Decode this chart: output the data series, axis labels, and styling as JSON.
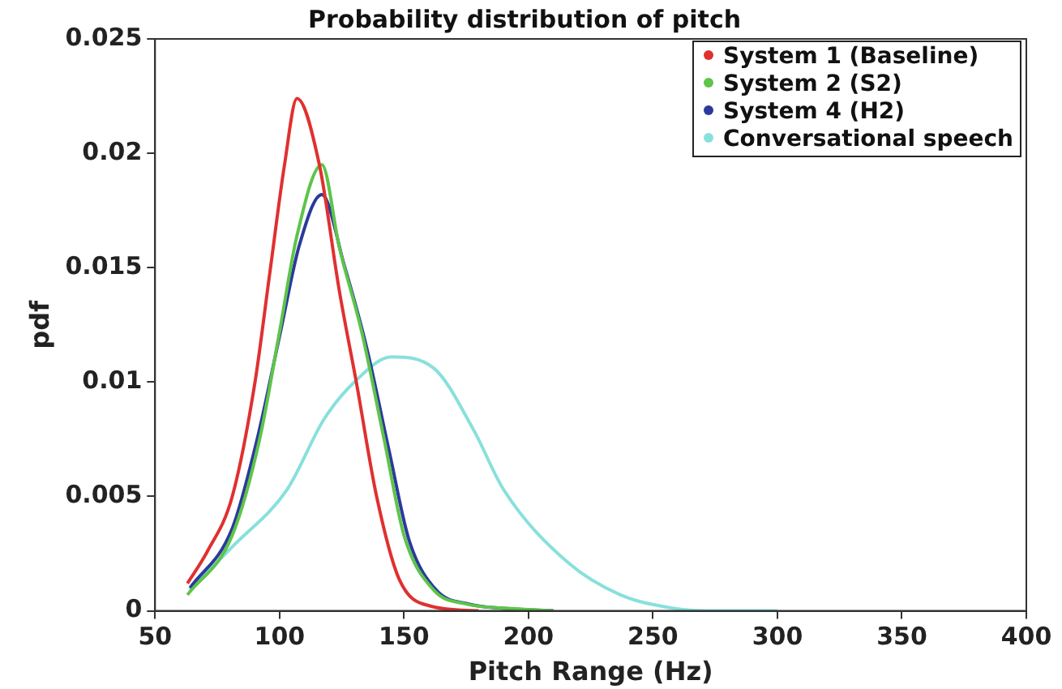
{
  "chart_data": {
    "type": "line",
    "title": "Probability distribution of pitch",
    "xlabel": "Pitch Range (Hz)",
    "ylabel": "pdf",
    "xlim": [
      50,
      400
    ],
    "xticks": [
      50,
      100,
      150,
      200,
      250,
      300,
      350,
      400
    ],
    "ylim": [
      0,
      0.025
    ],
    "yticks": [
      0,
      0.005,
      0.01,
      0.015,
      0.02,
      0.025
    ],
    "grid": false,
    "legend": "top right",
    "marker": "none",
    "line_style": "solid",
    "series": [
      {
        "name": "System 1 (Baseline)",
        "color": "#e03030",
        "x": [
          63,
          71,
          81,
          90,
          96,
          102,
          107,
          116,
          124,
          131,
          139,
          148,
          161,
          180
        ],
        "values": [
          0.0012,
          0.0026,
          0.005,
          0.0099,
          0.0147,
          0.0195,
          0.0224,
          0.0195,
          0.014,
          0.0099,
          0.005,
          0.0014,
          0.0002,
          0
        ]
      },
      {
        "name": "System 2 (S2)",
        "color": "#5ec44a",
        "x": [
          63,
          81,
          92,
          100,
          107,
          117,
          124,
          133,
          142,
          150,
          162,
          175,
          194,
          210
        ],
        "values": [
          0.0007,
          0.0033,
          0.0075,
          0.0122,
          0.0164,
          0.0195,
          0.0159,
          0.0122,
          0.0075,
          0.0033,
          0.0009,
          0.0003,
          0.0001,
          0
        ]
      },
      {
        "name": "System 4 (H2)",
        "color": "#2b3a9c",
        "x": [
          64,
          81,
          91,
          100,
          108,
          117,
          126,
          135,
          144,
          152,
          163,
          176,
          191,
          210
        ],
        "values": [
          0.001,
          0.0036,
          0.0075,
          0.012,
          0.016,
          0.0182,
          0.0151,
          0.0115,
          0.007,
          0.0031,
          0.0009,
          0.0003,
          0.0001,
          0
        ]
      },
      {
        "name": "Conversational speech",
        "color": "#88e0dc",
        "x": [
          64,
          81,
          103,
          118,
          131,
          145,
          162,
          178,
          190,
          216,
          237,
          259,
          272,
          300
        ],
        "values": [
          0.0009,
          0.0028,
          0.0053,
          0.0084,
          0.0101,
          0.0111,
          0.0106,
          0.0079,
          0.0053,
          0.0021,
          0.0007,
          0.0001,
          0,
          0
        ]
      }
    ]
  }
}
